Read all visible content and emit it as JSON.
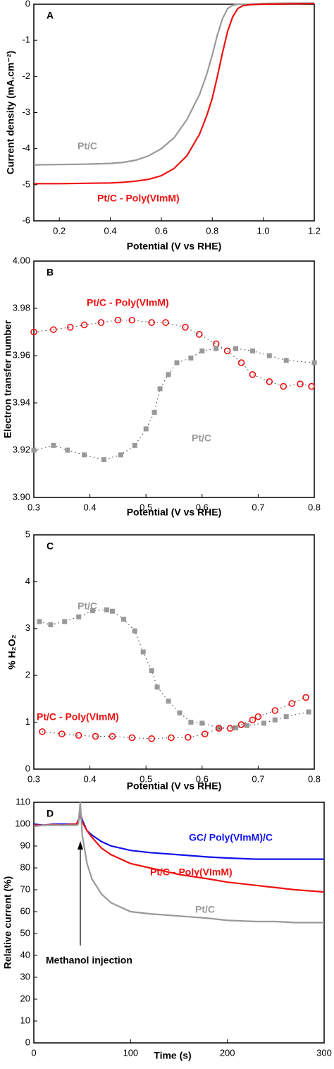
{
  "chart_data": [
    {
      "type": "line",
      "panel": "A",
      "x_label": "Potential (V vs RHE)",
      "y_label": "Current density (mA.cm⁻²)",
      "x": [
        0.1,
        0.2,
        0.3,
        0.4,
        0.45,
        0.5,
        0.55,
        0.6,
        0.65,
        0.7,
        0.75,
        0.78,
        0.8,
        0.82,
        0.84,
        0.86,
        0.88,
        0.9,
        0.92,
        0.95,
        1.0,
        1.1,
        1.2
      ],
      "series": [
        {
          "name": "Pt/C",
          "color": "#999999",
          "values": [
            -4.45,
            -4.44,
            -4.43,
            -4.41,
            -4.38,
            -4.32,
            -4.2,
            -4.0,
            -3.7,
            -3.2,
            -2.5,
            -1.9,
            -1.4,
            -0.85,
            -0.4,
            -0.12,
            -0.03,
            0,
            0,
            0,
            0.02,
            0.03,
            0.03
          ]
        },
        {
          "name": "Pt/C - Poly(VImM)",
          "color": "#ee1111",
          "values": [
            -4.97,
            -4.97,
            -4.96,
            -4.95,
            -4.93,
            -4.9,
            -4.85,
            -4.75,
            -4.55,
            -4.2,
            -3.6,
            -3.05,
            -2.6,
            -2.0,
            -1.35,
            -0.75,
            -0.35,
            -0.12,
            -0.04,
            -0.01,
            0,
            0.01,
            0.02
          ]
        }
      ],
      "xlim": [
        0.1,
        1.2
      ],
      "xticks": [
        0.2,
        0.4,
        0.6,
        0.8,
        {
          "value": 1,
          "label": "1.0"
        },
        1.2
      ],
      "ylim": [
        -6,
        0
      ],
      "yticks": [
        -6,
        -5,
        -4,
        -3,
        -2,
        -1,
        0
      ]
    },
    {
      "type": "scatter",
      "panel": "B",
      "x_label": "Potential (V vs RHE)",
      "y_label": "Electron transfer number",
      "series": [
        {
          "name": "Pt/C - Poly(VImM)",
          "color": "#ee1111",
          "marker": "circle",
          "linestyle": "dotted",
          "x": [
            0.3,
            0.335,
            0.365,
            0.39,
            0.42,
            0.45,
            0.475,
            0.51,
            0.535,
            0.57,
            0.595,
            0.625,
            0.645,
            0.67,
            0.69,
            0.72,
            0.745,
            0.775,
            0.795
          ],
          "values": [
            3.97,
            3.971,
            3.972,
            3.973,
            3.974,
            3.975,
            3.975,
            3.974,
            3.974,
            3.972,
            3.969,
            3.965,
            3.962,
            3.957,
            3.952,
            3.949,
            3.947,
            3.948,
            3.947
          ]
        },
        {
          "name": "Pt/C",
          "color": "#999999",
          "marker": "square",
          "linestyle": "dotted",
          "x": [
            0.3,
            0.335,
            0.36,
            0.39,
            0.425,
            0.455,
            0.48,
            0.5,
            0.515,
            0.525,
            0.54,
            0.555,
            0.58,
            0.6,
            0.625,
            0.66,
            0.69,
            0.72,
            0.75,
            0.8
          ],
          "values": [
            3.92,
            3.922,
            3.92,
            3.918,
            3.916,
            3.918,
            3.922,
            3.929,
            3.936,
            3.946,
            3.952,
            3.957,
            3.959,
            3.962,
            3.963,
            3.963,
            3.962,
            3.96,
            3.958,
            3.957
          ]
        }
      ],
      "xlim": [
        0.3,
        0.8
      ],
      "xticks": [
        0.3,
        0.4,
        0.5,
        0.6,
        0.7,
        0.8
      ],
      "ylim": [
        3.9,
        4.0
      ],
      "yticks": [
        {
          "value": 3.9,
          "label": "3.90"
        },
        3.92,
        3.94,
        3.96,
        3.98,
        {
          "value": 4,
          "label": "4.00"
        }
      ]
    },
    {
      "type": "scatter",
      "panel": "C",
      "x_label": "Potential (V vs RHE)",
      "y_label": "% H₂O₂",
      "series": [
        {
          "name": "Pt/C",
          "color": "#999999",
          "marker": "square",
          "linestyle": "dotted",
          "x": [
            0.31,
            0.33,
            0.355,
            0.38,
            0.405,
            0.43,
            0.44,
            0.46,
            0.48,
            0.495,
            0.51,
            0.52,
            0.54,
            0.56,
            0.58,
            0.6,
            0.63,
            0.66,
            0.68,
            0.71,
            0.73,
            0.75,
            0.79
          ],
          "values": [
            3.15,
            3.08,
            3.15,
            3.25,
            3.38,
            3.4,
            3.37,
            3.2,
            2.95,
            2.5,
            2.1,
            1.75,
            1.45,
            1.2,
            1.0,
            0.98,
            0.88,
            0.88,
            0.93,
            0.98,
            1.05,
            1.12,
            1.22
          ]
        },
        {
          "name": "Pt/C - Poly(VImM)",
          "color": "#ee1111",
          "marker": "circle",
          "linestyle": "dotted",
          "x": [
            0.315,
            0.35,
            0.38,
            0.41,
            0.44,
            0.475,
            0.51,
            0.545,
            0.575,
            0.605,
            0.63,
            0.65,
            0.67,
            0.69,
            0.7,
            0.73,
            0.76,
            0.785
          ],
          "values": [
            0.8,
            0.75,
            0.72,
            0.7,
            0.7,
            0.67,
            0.65,
            0.67,
            0.68,
            0.75,
            0.87,
            0.87,
            0.95,
            1.05,
            1.12,
            1.25,
            1.4,
            1.53
          ]
        }
      ],
      "xlim": [
        0.3,
        0.8
      ],
      "xticks": [
        0.3,
        0.4,
        0.5,
        0.6,
        0.7,
        0.8
      ],
      "ylim": [
        0,
        5
      ],
      "yticks": [
        0,
        1,
        2,
        3,
        4,
        5
      ]
    },
    {
      "type": "line",
      "panel": "D",
      "x_label": "Time (s)",
      "y_label": "Relative current (%)",
      "annotations": [
        {
          "text": "Methanol injection"
        }
      ],
      "x": [
        0,
        10,
        20,
        30,
        40,
        44,
        46,
        48,
        50,
        55,
        60,
        70,
        80,
        100,
        120,
        150,
        180,
        200,
        230,
        250,
        270,
        300
      ],
      "series": [
        {
          "name": "GC/ Poly(VImM)/C",
          "color": "#1111ee",
          "values": [
            100,
            99.5,
            100,
            100,
            100,
            100,
            101,
            105,
            102,
            97,
            95,
            92,
            90,
            88,
            87,
            86,
            85,
            84.5,
            84,
            84,
            84,
            84
          ]
        },
        {
          "name": "Pt/C - Poly(VImM)",
          "color": "#ee1111",
          "values": [
            99.5,
            99.5,
            99.8,
            99.5,
            100,
            100,
            102,
            104,
            101,
            97,
            94,
            89,
            86,
            82,
            80,
            77,
            75,
            73.5,
            72,
            71,
            70,
            69
          ]
        },
        {
          "name": "Pt/C",
          "color": "#999999",
          "values": [
            99,
            99.5,
            99.5,
            99.5,
            99.5,
            99.5,
            100,
            110,
            95,
            82,
            75,
            68,
            64,
            60,
            59,
            58,
            57,
            56,
            55.5,
            55.5,
            55,
            55
          ]
        }
      ],
      "xlim": [
        0,
        300
      ],
      "xticks": [
        0,
        100,
        200,
        300
      ],
      "ylim": [
        0,
        110
      ],
      "yticks": [
        0,
        10,
        20,
        30,
        40,
        50,
        60,
        70,
        80,
        90,
        100,
        110
      ]
    }
  ]
}
